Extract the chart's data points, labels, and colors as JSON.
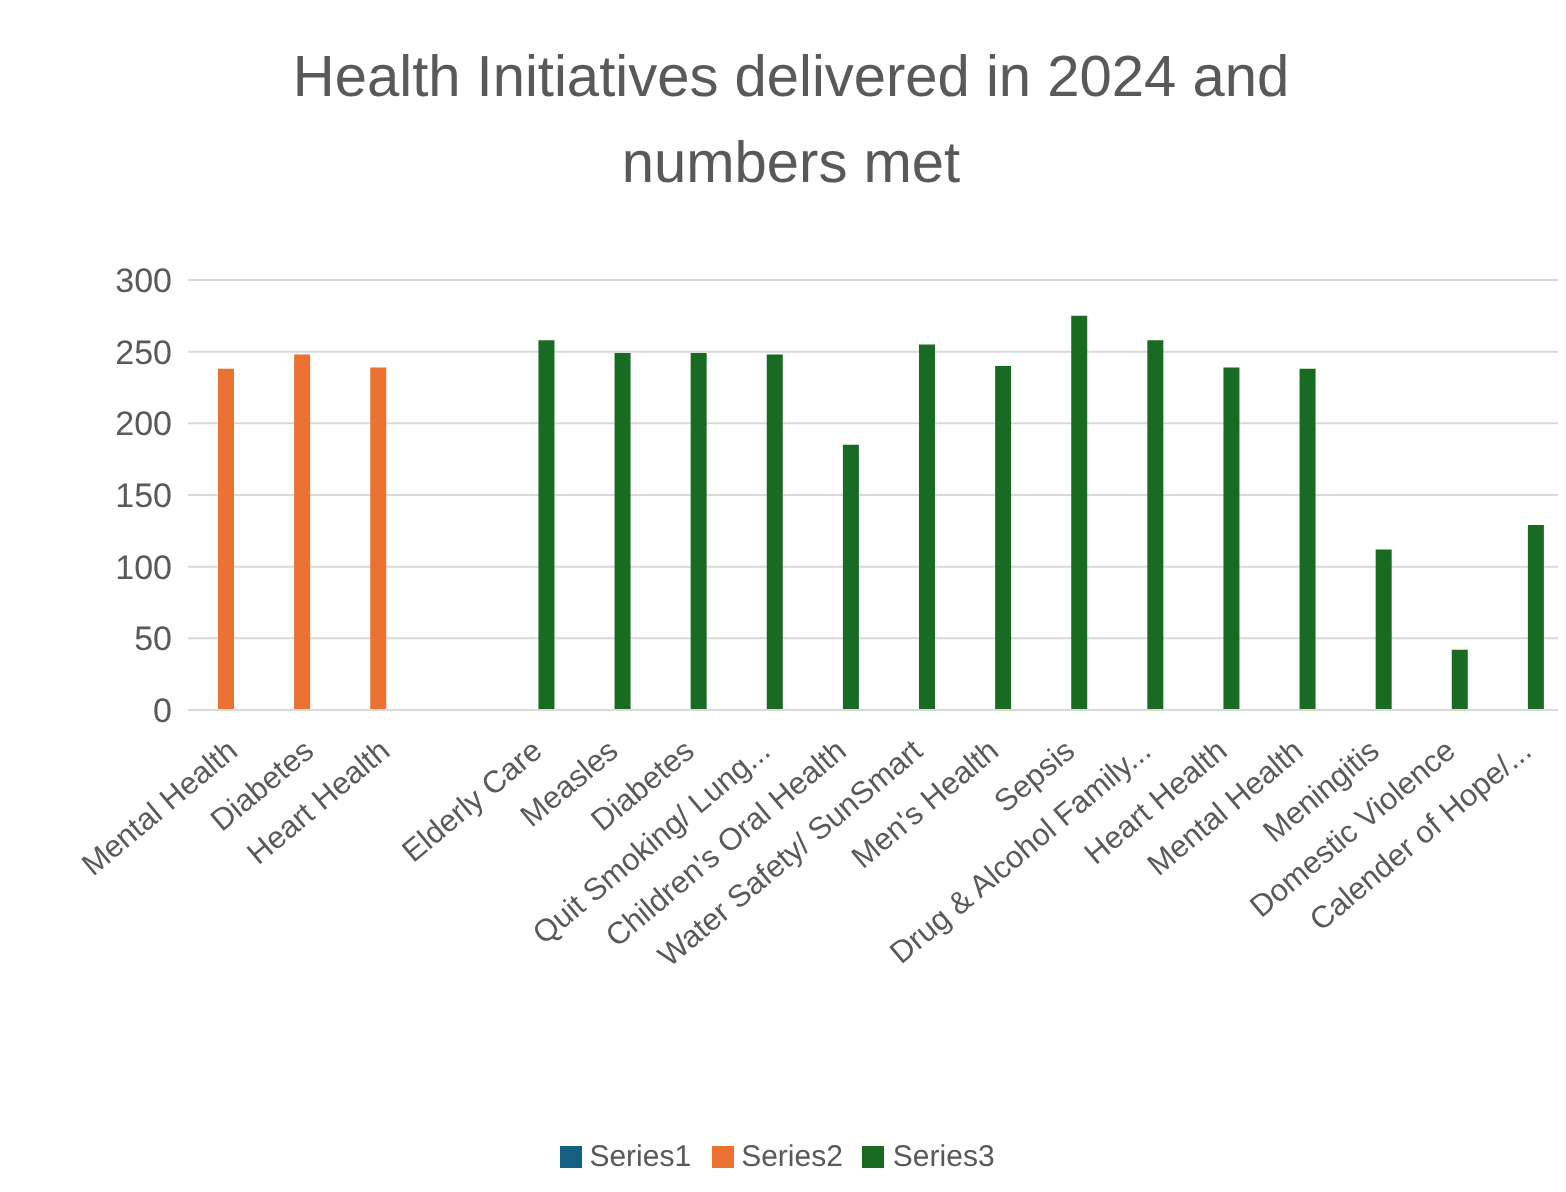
{
  "chart_data": {
    "type": "bar",
    "title": "Health Initiatives delivered in 2024 and numbers met",
    "categories": [
      "Mental Health",
      "Diabetes",
      "Heart Health",
      null,
      "Elderly Care",
      "Measles",
      "Diabetes",
      "Quit Smoking/ Lung...",
      "Children's Oral Health",
      "Water Safety/ SunSmart",
      "Men's Health",
      "Sepsis",
      "Drug & Alcohol Family...",
      "Heart Health",
      "Mental Health",
      "Meningitis",
      "Domestic Violence",
      "Calender of Hope/..."
    ],
    "series": [
      {
        "name": "Series1",
        "color": "#156082",
        "values": [
          null,
          null,
          null,
          null,
          null,
          null,
          null,
          null,
          null,
          null,
          null,
          null,
          null,
          null,
          null,
          null,
          null,
          null
        ]
      },
      {
        "name": "Series2",
        "color": "#e97132",
        "values": [
          238,
          248,
          239,
          null,
          null,
          null,
          null,
          null,
          null,
          null,
          null,
          null,
          null,
          null,
          null,
          null,
          null,
          null
        ]
      },
      {
        "name": "Series3",
        "color": "#196b24",
        "values": [
          null,
          null,
          null,
          null,
          258,
          249,
          249,
          248,
          185,
          255,
          240,
          275,
          258,
          239,
          238,
          112,
          42,
          129
        ]
      }
    ],
    "ylim": [
      0,
      300
    ],
    "yticks": [
      0,
      50,
      100,
      150,
      200,
      250,
      300
    ],
    "grid": "y",
    "legend": "bottom"
  }
}
